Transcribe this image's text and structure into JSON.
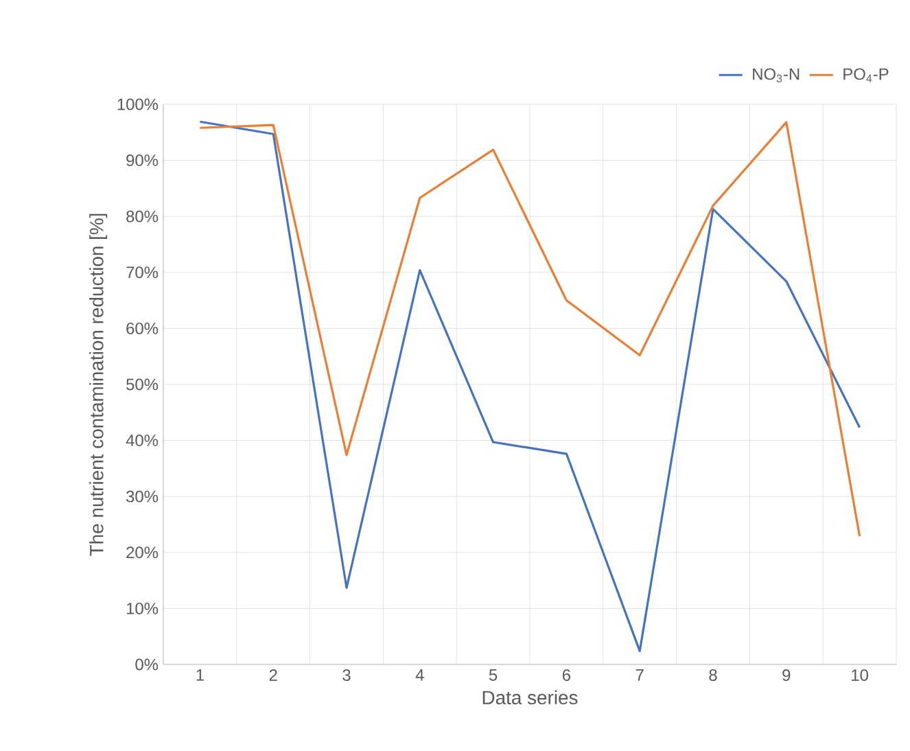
{
  "chart_data": {
    "type": "line",
    "xlabel": "Data series",
    "ylabel": "The nutrient contamination reduction [%]",
    "categories": [
      "1",
      "2",
      "3",
      "4",
      "5",
      "6",
      "7",
      "8",
      "9",
      "10"
    ],
    "series": [
      {
        "name": "NO$_{3}$-N",
        "color": "#4472c4",
        "values": [
          96.9,
          94.7,
          13.7,
          70.4,
          39.7,
          37.6,
          2.4,
          81.3,
          68.4,
          42.3
        ]
      },
      {
        "name": "PO$_{4}$-P",
        "color": "#ed7d31",
        "values": [
          95.8,
          96.3,
          37.4,
          83.3,
          91.9,
          65.0,
          55.2,
          81.9,
          96.8,
          22.9
        ]
      }
    ],
    "ylim": [
      0,
      100
    ],
    "yticks": [
      {
        "value": 0,
        "label": "0%"
      },
      {
        "value": 10,
        "label": "10%"
      },
      {
        "value": 20,
        "label": "20%"
      },
      {
        "value": 30,
        "label": "30%"
      },
      {
        "value": 40,
        "label": "40%"
      },
      {
        "value": 50,
        "label": "50%"
      },
      {
        "value": 60,
        "label": "60%"
      },
      {
        "value": 70,
        "label": "70%"
      },
      {
        "value": 80,
        "label": "80%"
      },
      {
        "value": 90,
        "label": "90%"
      },
      {
        "value": 100,
        "label": "100%"
      }
    ],
    "grid": true,
    "legend": "top right",
    "marker": "none",
    "line_style": "solid"
  }
}
